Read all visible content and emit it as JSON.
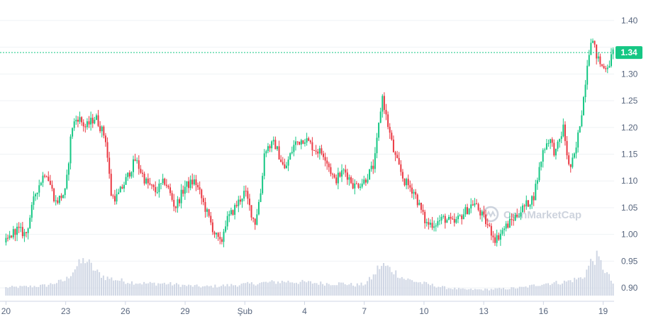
{
  "chart_data": {
    "type": "candlestick",
    "y_axis": {
      "ylim": [
        0.875,
        1.425
      ],
      "ticks": [
        0.9,
        0.95,
        1.0,
        1.05,
        1.1,
        1.15,
        1.2,
        1.25,
        1.3,
        1.35,
        1.4
      ],
      "tick_labels": [
        "0.90",
        "0.95",
        "1.00",
        "1.05",
        "1.10",
        "1.15",
        "1.20",
        "1.25",
        "1.30",
        "1.35",
        "1.40"
      ],
      "position": "right"
    },
    "x_axis": {
      "ticks": [
        "20",
        "23",
        "26",
        "29",
        "Şub",
        "4",
        "7",
        "10",
        "13",
        "16",
        "19"
      ],
      "tick_days": [
        0,
        3,
        6,
        9,
        12,
        15,
        18,
        21,
        24,
        27,
        30
      ],
      "xlim_days": [
        -0.3,
        30.55
      ]
    },
    "current_price": 1.34,
    "current_price_label": "1.34",
    "price_series": {
      "days": [
        0,
        0.5,
        1,
        1.5,
        2,
        2.5,
        3,
        3.3,
        3.6,
        4,
        4.5,
        5,
        5.3,
        5.6,
        6,
        6.5,
        7,
        7.5,
        8,
        8.5,
        9,
        9.5,
        10,
        10.5,
        10.8,
        11,
        11.5,
        12,
        12.5,
        12.8,
        13,
        13.5,
        14,
        14.5,
        15,
        15.5,
        16,
        16.5,
        17,
        17.5,
        18,
        18.5,
        18.9,
        19.1,
        19.5,
        20,
        20.5,
        20.9,
        21.1,
        21.5,
        22,
        22.5,
        23,
        23.5,
        24,
        24.3,
        24.6,
        25,
        25.5,
        26,
        26.5,
        27,
        27.3,
        27.6,
        28,
        28.3,
        28.6,
        29,
        29.2,
        29.4,
        29.7,
        30,
        30.3,
        30.5
      ],
      "prices": [
        0.985,
        1.01,
        1.0,
        1.08,
        1.12,
        1.06,
        1.08,
        1.2,
        1.22,
        1.2,
        1.22,
        1.18,
        1.07,
        1.07,
        1.1,
        1.14,
        1.1,
        1.08,
        1.1,
        1.05,
        1.09,
        1.1,
        1.05,
        1.0,
        0.98,
        1.02,
        1.05,
        1.08,
        1.02,
        1.08,
        1.16,
        1.17,
        1.12,
        1.17,
        1.18,
        1.16,
        1.15,
        1.1,
        1.12,
        1.09,
        1.1,
        1.13,
        1.26,
        1.22,
        1.15,
        1.1,
        1.08,
        1.04,
        1.02,
        1.02,
        1.03,
        1.02,
        1.04,
        1.06,
        1.03,
        1.01,
        0.99,
        1.01,
        1.03,
        1.05,
        1.07,
        1.16,
        1.18,
        1.15,
        1.2,
        1.12,
        1.15,
        1.25,
        1.32,
        1.37,
        1.33,
        1.31,
        1.32,
        1.34
      ]
    },
    "volume_series": {
      "days": [
        0,
        1,
        2,
        2.5,
        3,
        3.5,
        4,
        4.5,
        5,
        6,
        7,
        8,
        9,
        10,
        11,
        12,
        13,
        14,
        15,
        16,
        17,
        17.5,
        18,
        18.5,
        18.7,
        19,
        19.5,
        20,
        21,
        22,
        23,
        24,
        25,
        26,
        27,
        28,
        29,
        29.4,
        29.7,
        30,
        30.5
      ],
      "relative_values": [
        0.2,
        0.22,
        0.25,
        0.32,
        0.38,
        0.7,
        0.9,
        0.6,
        0.45,
        0.35,
        0.3,
        0.3,
        0.25,
        0.22,
        0.25,
        0.28,
        0.32,
        0.35,
        0.33,
        0.3,
        0.3,
        0.26,
        0.28,
        0.5,
        0.7,
        0.75,
        0.6,
        0.42,
        0.3,
        0.2,
        0.15,
        0.15,
        0.17,
        0.2,
        0.3,
        0.33,
        0.45,
        0.85,
        0.95,
        0.7,
        0.3
      ]
    },
    "colors": {
      "up": "#16c784",
      "down": "#ea3943",
      "volume": "#cfd6e4",
      "grid": "#eff2f5",
      "current_line": "#16c784",
      "tick_text": "#58667e"
    },
    "grid": true,
    "legend": "none"
  },
  "watermark": {
    "text": "CoinMarketCap"
  }
}
